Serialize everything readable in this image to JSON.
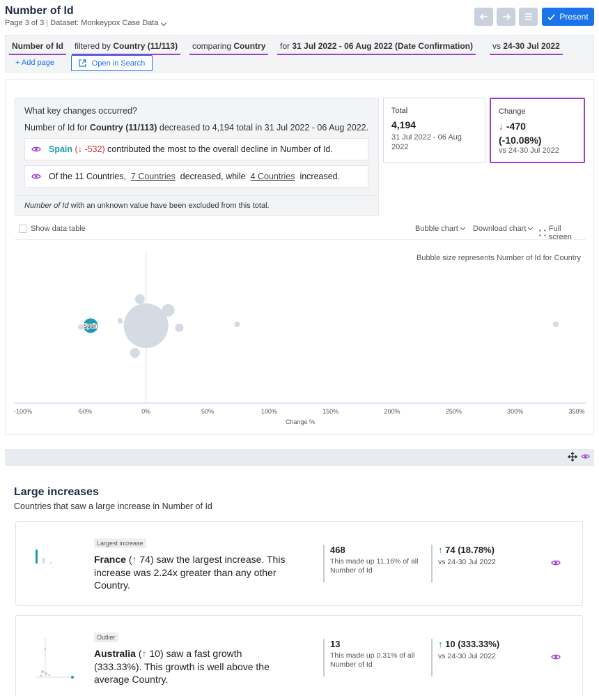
{
  "header": {
    "title": "Number of Id",
    "page_info": "Page 3 of 3",
    "dataset_label": "Dataset: Monkeypox Case Data",
    "present_label": "Present"
  },
  "query": {
    "measure": "Number of Id",
    "filter_prefix": "filtered by",
    "filter_value": "Country (11/113)",
    "compare_prefix": "comparing",
    "compare_value": "Country",
    "date_prefix": "for",
    "date_value": "31 Jul 2022 - 06 Aug 2022 (Date Confirmation)",
    "vs_prefix": "vs",
    "vs_value": "24-30 Jul 2022",
    "add_page": "+ Add page",
    "open_search": "Open in Search"
  },
  "key_changes": {
    "question": "What key changes occurred?",
    "summary_a": "Number of Id for",
    "summary_b": "Country (11/113)",
    "summary_c": "decreased to 4,194 total in 31 Jul 2022 - 06 Aug 2022.",
    "insight1_name": "Spain",
    "insight1_open": "(",
    "insight1_arrow": "↓",
    "insight1_val": "-532)",
    "insight1_rest": "contributed the most to the overall decline in Number of Id.",
    "insight2_a": "Of the 11 Countries,",
    "insight2_link1": "7 Countries",
    "insight2_b": "decreased, while",
    "insight2_link2": "4 Countries",
    "insight2_c": "increased.",
    "note_em": "Number of Id",
    "note_rest": "with an unknown value have been excluded from this total."
  },
  "total_card": {
    "label": "Total",
    "value": "4,194",
    "period": "31 Jul 2022 - 06 Aug 2022"
  },
  "change_card": {
    "label": "Change",
    "arrow": "↓",
    "value_line1": "-470",
    "value_line2": "(-10.08%)",
    "vs": "vs 24-30 Jul 2022"
  },
  "toolbar": {
    "show_table": "Show data table",
    "bubble_chart": "Bubble chart",
    "download_chart": "Download chart",
    "full_screen": "Full screen"
  },
  "chart_data": {
    "type": "scatter",
    "note": "Bubble size represents Number of Id for Country",
    "xlabel": "Change %",
    "xlim": [
      -100,
      350
    ],
    "xticks": [
      "-100%",
      "-50%",
      "0%",
      "50%",
      "100%",
      "150%",
      "200%",
      "250%",
      "300%",
      "350%"
    ],
    "tick_values": [
      -100,
      -50,
      0,
      50,
      100,
      150,
      200,
      250,
      300,
      350
    ],
    "points": [
      {
        "label": "Spain",
        "x": -45,
        "y": 0,
        "r": 11,
        "highlight": true
      },
      {
        "label": "",
        "x": -53,
        "y": -2,
        "r": 4
      },
      {
        "label": "",
        "x": 0,
        "y": 0,
        "r": 32
      },
      {
        "label": "",
        "x": -5,
        "y": 38,
        "r": 7
      },
      {
        "label": "",
        "x": 18,
        "y": 22,
        "r": 9
      },
      {
        "label": "",
        "x": -21,
        "y": 7,
        "r": 4
      },
      {
        "label": "",
        "x": 27,
        "y": -3,
        "r": 6
      },
      {
        "label": "",
        "x": -9,
        "y": -39,
        "r": 7
      },
      {
        "label": "",
        "x": 74,
        "y": 2,
        "r": 4
      },
      {
        "label": "",
        "x": 333,
        "y": 2,
        "r": 4
      }
    ]
  },
  "section": {
    "title": "Large increases",
    "subtitle": "Countries that saw a large increase in Number of Id"
  },
  "increase_cards": [
    {
      "badge": "Largest increase",
      "name": "France",
      "arrow": "↑",
      "delta": "74)",
      "text_open": "(",
      "text_rest": "saw the largest increase. This increase was 2.24x greater than any other Country.",
      "stat_value": "468",
      "stat_desc": "This made up 11.16% of all Number of Id",
      "chg_arrow": "↑",
      "chg_value": "74 (18.78%)",
      "chg_vs": "vs 24-30 Jul 2022"
    },
    {
      "badge": "Outlier",
      "name": "Australia",
      "arrow": "↑",
      "delta": "10)",
      "text_open": "(",
      "text_rest": "saw a fast growth (333.33%). This growth is well above the average Country.",
      "stat_value": "13",
      "stat_desc": "This made up 0.31% of all Number of Id",
      "chg_arrow": "↑",
      "chg_value": "10 (333.33%)",
      "chg_vs": "vs 24-30 Jul 2022"
    }
  ],
  "colors": {
    "accent": "#1a73e8",
    "highlight_purple": "#9b3fd3",
    "teal": "#1e9cb3",
    "bubble_gray": "#d5dbe3",
    "negative": "#dd3333",
    "positive": "#16a34a"
  }
}
